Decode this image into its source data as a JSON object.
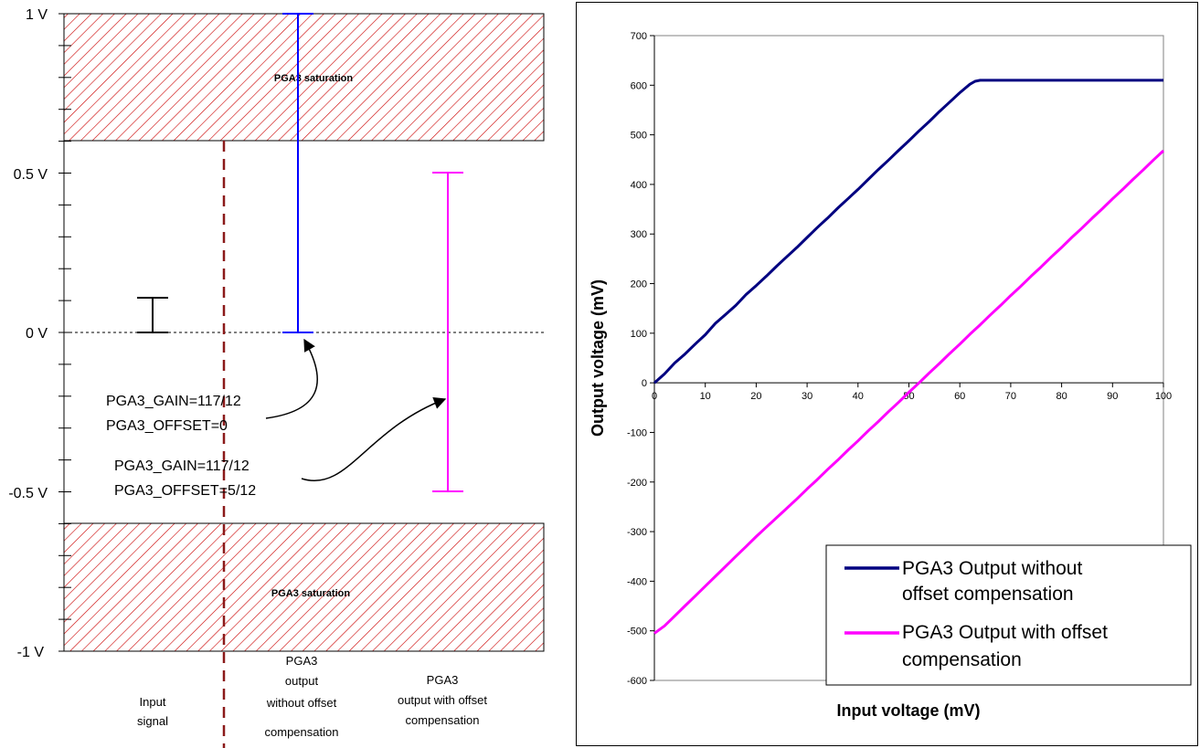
{
  "diagram": {
    "y_levels": [
      {
        "label": "1 V",
        "value": 1.0
      },
      {
        "label": "0.5 V",
        "value": 0.5
      },
      {
        "label": "0 V",
        "value": 0.0
      },
      {
        "label": "-0.5 V",
        "value": -0.5
      },
      {
        "label": "-1 V",
        "value": -1.0
      }
    ],
    "saturation_label_top": "PGA3 saturation",
    "saturation_label_bottom": "PGA3 saturation",
    "saturation_threshold_v": 0.6,
    "input_signal": {
      "label_line1": "Input",
      "label_line2": "signal",
      "low_v": 0.0,
      "high_v": 0.11
    },
    "no_offset": {
      "label_line1": "PGA3",
      "label_line2": "output",
      "label_line3": "without offset",
      "label_line4": "compensation",
      "low_v": 0.0,
      "high_v": 1.0,
      "color": "#0000ff",
      "annotation_gain": "PGA3_GAIN=117/12",
      "annotation_offset": "PGA3_OFFSET=0"
    },
    "with_offset": {
      "label_line1": "PGA3",
      "label_line2": "output with offset",
      "label_line3": "compensation",
      "low_v": -0.5,
      "high_v": 0.5,
      "color": "#ff00ff",
      "annotation_gain": "PGA3_GAIN=117/12",
      "annotation_offset": "PGA3_OFFSET=5/12"
    },
    "hatch_color": "#cc0000",
    "divider_color": "#8b1a1a"
  },
  "chart_data": {
    "type": "line",
    "xlabel": "Input voltage (mV)",
    "ylabel": "Output voltage (mV)",
    "xlim": [
      0,
      100
    ],
    "ylim": [
      -600,
      700
    ],
    "xticks": [
      0,
      10,
      20,
      30,
      40,
      50,
      60,
      70,
      80,
      90,
      100
    ],
    "yticks": [
      -600,
      -500,
      -400,
      -300,
      -200,
      -100,
      0,
      100,
      200,
      300,
      400,
      500,
      600,
      700
    ],
    "legend_position": "bottom-right",
    "series": [
      {
        "name": "PGA3 Output without offset compensation",
        "legend_line1": "PGA3 Output without",
        "legend_line2": "offset compensation",
        "color": "#000080",
        "x": [
          0,
          2,
          4,
          6,
          8,
          10,
          12,
          14,
          16,
          18,
          20,
          22,
          24,
          26,
          28,
          30,
          32,
          34,
          36,
          38,
          40,
          42,
          44,
          46,
          48,
          50,
          52,
          54,
          56,
          58,
          60,
          62,
          63,
          64,
          65,
          70,
          80,
          90,
          100
        ],
        "y": [
          0,
          18,
          40,
          58,
          78,
          97,
          120,
          138,
          156,
          178,
          196,
          215,
          235,
          254,
          273,
          293,
          313,
          332,
          352,
          371,
          390,
          410,
          430,
          449,
          469,
          488,
          508,
          527,
          547,
          566,
          585,
          602,
          608,
          610,
          610,
          610,
          610,
          610,
          610
        ]
      },
      {
        "name": "PGA3 Output with offset compensation",
        "legend_line1": "PGA3 Output with offset",
        "legend_line2": "compensation",
        "color": "#ff00ff",
        "x": [
          0,
          2,
          4,
          6,
          8,
          10,
          12,
          14,
          16,
          18,
          20,
          22,
          24,
          26,
          28,
          30,
          32,
          34,
          36,
          38,
          40,
          42,
          44,
          46,
          48,
          50,
          52,
          54,
          56,
          58,
          60,
          62,
          64,
          66,
          68,
          70,
          72,
          74,
          76,
          78,
          80,
          82,
          84,
          86,
          88,
          90,
          92,
          94,
          96,
          98,
          100
        ],
        "y": [
          -505,
          -490,
          -470,
          -450,
          -430,
          -410,
          -390,
          -370,
          -350,
          -330,
          -310,
          -291,
          -272,
          -253,
          -234,
          -214,
          -195,
          -175,
          -156,
          -136,
          -117,
          -97,
          -78,
          -58,
          -39,
          -19,
          0,
          20,
          39,
          59,
          78,
          98,
          117,
          137,
          156,
          176,
          195,
          215,
          234,
          254,
          273,
          293,
          312,
          332,
          351,
          371,
          390,
          410,
          429,
          449,
          468
        ]
      }
    ]
  }
}
